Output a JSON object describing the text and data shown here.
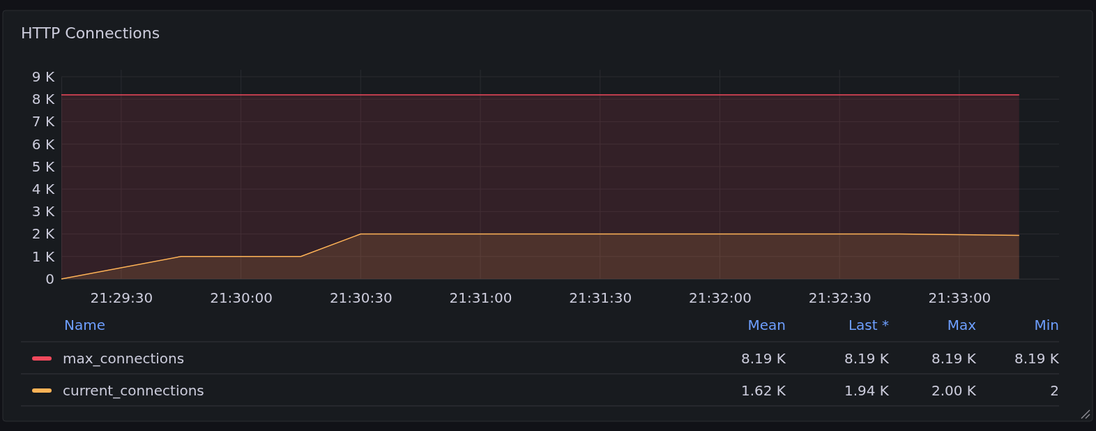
{
  "chart_data": {
    "type": "area",
    "title": "HTTP Connections",
    "xlim": [
      21.4875,
      21.556944
    ],
    "xticks": [
      {
        "value": 21.491667,
        "label": "21:29:30"
      },
      {
        "value": 21.5,
        "label": "21:30:00"
      },
      {
        "value": 21.508333,
        "label": "21:30:30"
      },
      {
        "value": 21.516667,
        "label": "21:31:00"
      },
      {
        "value": 21.525,
        "label": "21:31:30"
      },
      {
        "value": 21.533333,
        "label": "21:32:00"
      },
      {
        "value": 21.541667,
        "label": "21:32:30"
      },
      {
        "value": 21.55,
        "label": "21:33:00"
      }
    ],
    "ylim": [
      0,
      9000
    ],
    "yticks": [
      0,
      {
        "value": 1000,
        "label": "1 K"
      },
      {
        "value": 2000,
        "label": "2 K"
      },
      {
        "value": 3000,
        "label": "3 K"
      },
      {
        "value": 4000,
        "label": "4 K"
      },
      {
        "value": 5000,
        "label": "5 K"
      },
      {
        "value": 6000,
        "label": "6 K"
      },
      {
        "value": 7000,
        "label": "7 K"
      },
      {
        "value": 8000,
        "label": "8 K"
      },
      {
        "value": 9000,
        "label": "9 K"
      }
    ],
    "series": [
      {
        "name": "max_connections",
        "color": "#f2495c",
        "x": [
          21.4875,
          21.554167
        ],
        "values": [
          8190,
          8190
        ]
      },
      {
        "name": "current_connections",
        "color": "#ffb357",
        "x": [
          21.4875,
          21.495833,
          21.504167,
          21.508333,
          21.545833,
          21.554167
        ],
        "values": [
          0,
          1000,
          1000,
          2000,
          2000,
          1940
        ]
      }
    ],
    "grid": true,
    "legend": "bottom",
    "annotations": [
      "Name",
      "Mean",
      "Last *",
      "Max",
      "Min",
      "8.19 K",
      "8.19 K",
      "8.19 K",
      "8.19 K",
      "1.62 K",
      "1.94 K",
      "2.00 K",
      "2"
    ]
  }
}
